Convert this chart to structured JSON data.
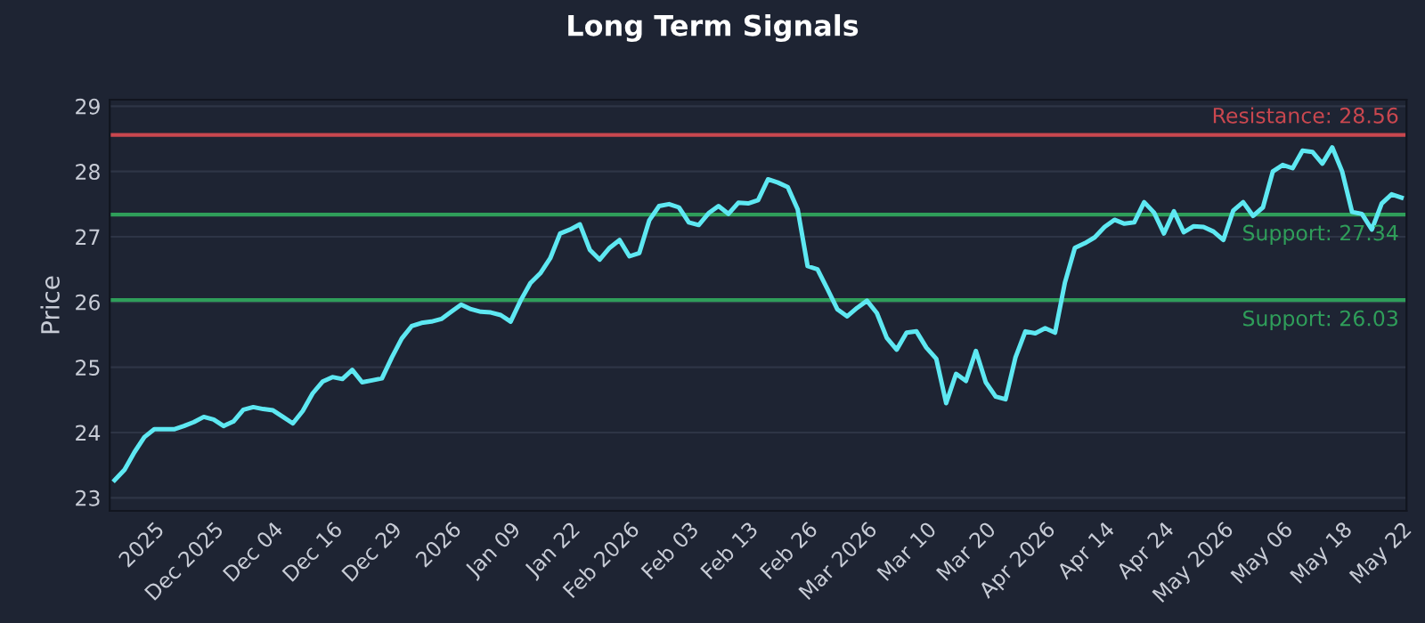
{
  "chart_data": {
    "type": "line",
    "title": "Long Term Signals",
    "ylabel": "Price",
    "categories": [
      null,
      null,
      null,
      null,
      "2025",
      null,
      null,
      null,
      null,
      null,
      "Dec 2025",
      null,
      null,
      null,
      null,
      null,
      "Dec 04",
      null,
      null,
      null,
      null,
      null,
      "Dec 16",
      null,
      null,
      null,
      null,
      null,
      "Dec 29",
      null,
      null,
      null,
      null,
      null,
      "2026",
      null,
      null,
      null,
      null,
      null,
      "Jan 09",
      null,
      null,
      null,
      null,
      null,
      "Jan 22",
      null,
      null,
      null,
      null,
      null,
      "Feb 2026",
      null,
      null,
      null,
      null,
      null,
      "Feb 03",
      null,
      null,
      null,
      null,
      null,
      "Feb 13",
      null,
      null,
      null,
      null,
      null,
      "Feb 26",
      null,
      null,
      null,
      null,
      null,
      "Mar 2026",
      null,
      null,
      null,
      null,
      null,
      "Mar 10",
      null,
      null,
      null,
      null,
      null,
      "Mar 20",
      null,
      null,
      null,
      null,
      null,
      "Apr 2026",
      null,
      null,
      null,
      null,
      null,
      "Apr 14",
      null,
      null,
      null,
      null,
      null,
      "Apr 24",
      null,
      null,
      null,
      null,
      null,
      "May 2026",
      null,
      null,
      null,
      null,
      null,
      "May 06",
      null,
      null,
      null,
      null,
      null,
      "May 18",
      null,
      null,
      null,
      null,
      null,
      "May 22"
    ],
    "series": [
      {
        "color": "#5ee8f2",
        "values": [
          23.27,
          23.43,
          23.7,
          23.93,
          24.05,
          24.05,
          24.05,
          24.1,
          24.16,
          24.24,
          24.2,
          24.1,
          24.17,
          24.35,
          24.39,
          24.36,
          24.34,
          24.24,
          24.14,
          24.33,
          24.6,
          24.78,
          24.85,
          24.82,
          24.96,
          24.77,
          24.8,
          24.83,
          25.15,
          25.44,
          25.63,
          25.68,
          25.7,
          25.74,
          25.85,
          25.96,
          25.89,
          25.85,
          25.84,
          25.8,
          25.7,
          26.02,
          26.29,
          26.44,
          26.67,
          27.05,
          27.11,
          27.19,
          26.8,
          26.65,
          26.83,
          26.95,
          26.7,
          26.75,
          27.25,
          27.47,
          27.5,
          27.45,
          27.22,
          27.18,
          27.36,
          27.47,
          27.35,
          27.52,
          27.51,
          27.56,
          27.88,
          27.83,
          27.76,
          27.42,
          26.55,
          26.5,
          26.2,
          25.89,
          25.78,
          25.91,
          26.02,
          25.83,
          25.45,
          25.27,
          25.53,
          25.55,
          25.3,
          25.13,
          24.45,
          24.9,
          24.79,
          25.25,
          24.77,
          24.55,
          24.51,
          25.15,
          25.55,
          25.52,
          25.6,
          25.53,
          26.3,
          26.83,
          26.9,
          26.99,
          27.15,
          27.26,
          27.2,
          27.22,
          27.53,
          27.37,
          27.05,
          27.39,
          27.07,
          27.16,
          27.15,
          27.08,
          26.95,
          27.4,
          27.53,
          27.32,
          27.45,
          28.0,
          28.1,
          28.05,
          28.32,
          28.3,
          28.12,
          28.37,
          28.0,
          27.38,
          27.35,
          27.11,
          27.51,
          27.65,
          27.6
        ]
      }
    ],
    "ylim": [
      22.8,
      29.1
    ],
    "yticks": [
      23,
      24,
      25,
      26,
      27,
      28,
      29
    ],
    "grid": "y",
    "ref_lines": [
      {
        "axis": "y",
        "value": 28.56,
        "label": "Resistance: 28.56",
        "color": "#c9474f"
      },
      {
        "axis": "y",
        "value": 27.34,
        "label": "Support: 27.34",
        "color": "#2f9e5a"
      },
      {
        "axis": "y",
        "value": 26.03,
        "label": "Support: 26.03",
        "color": "#2f9e5a"
      }
    ]
  }
}
